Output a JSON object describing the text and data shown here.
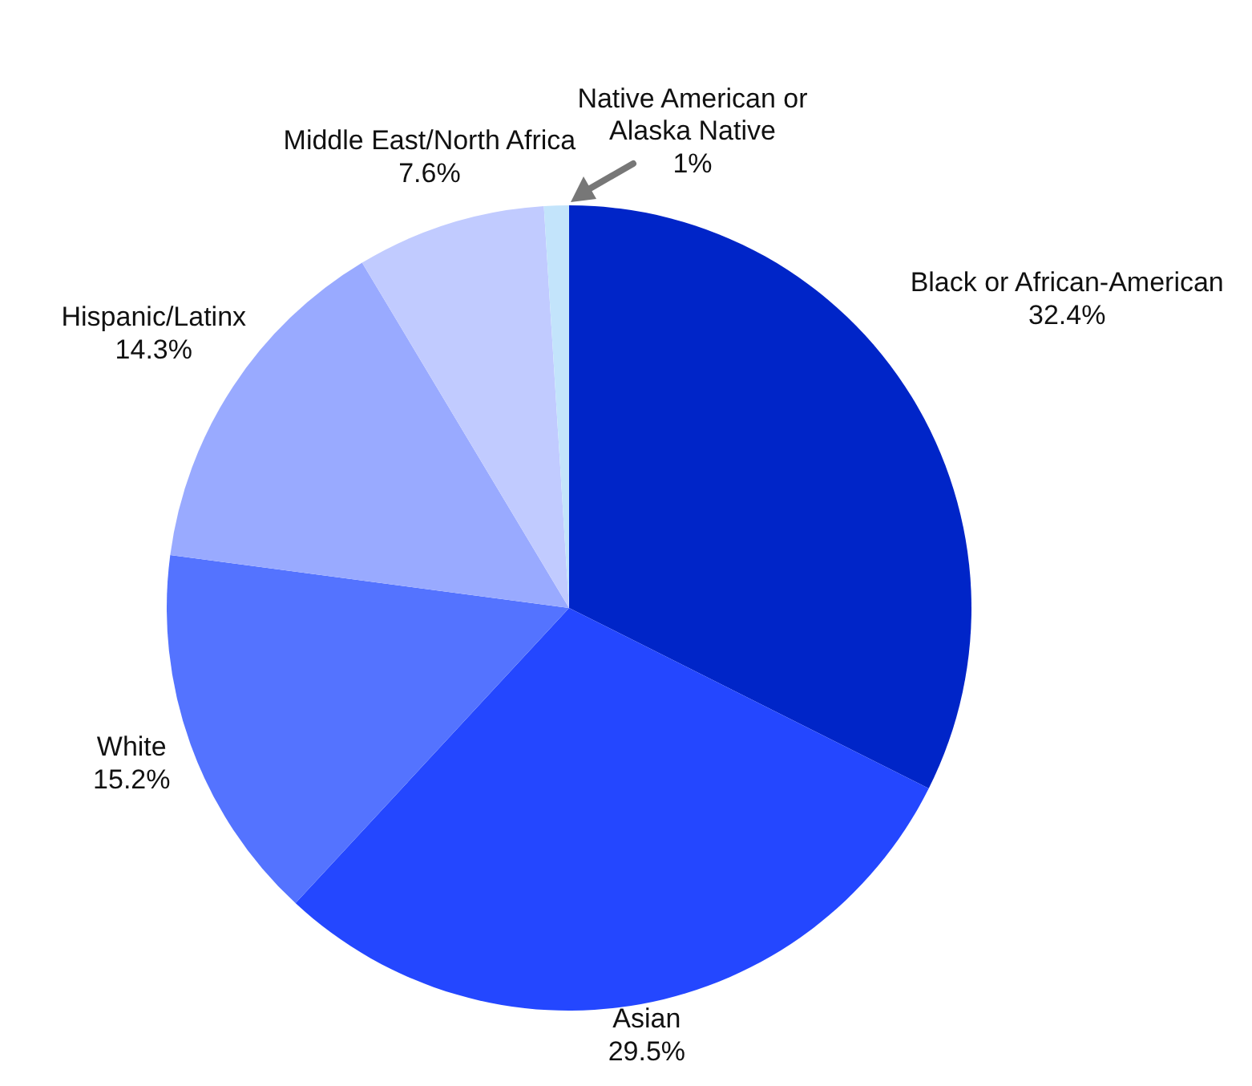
{
  "chart_data": {
    "type": "pie",
    "categories": [
      "Black or African-American",
      "Asian",
      "White",
      "Hispanic/Latinx",
      "Middle East/North Africa",
      "Native American or Alaska Native"
    ],
    "values": [
      32.4,
      29.5,
      15.2,
      14.3,
      7.6,
      1
    ],
    "colors": [
      "#0025c8",
      "#2447ff",
      "#5473ff",
      "#99aaff",
      "#c1cbff",
      "#c3e4fb"
    ],
    "value_labels": [
      "32.4%",
      "29.5%",
      "15.2%",
      "14.3%",
      "7.6%",
      "1%"
    ]
  }
}
